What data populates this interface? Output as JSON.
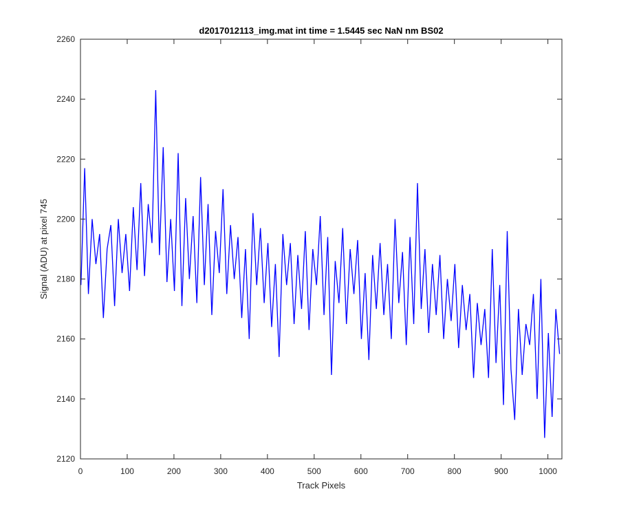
{
  "chart_data": {
    "type": "line",
    "title": "d2017012113_img.mat int time = 1.5445 sec  NaN nm BS02",
    "x_label": "Track Pixels",
    "y_label": "Signal (ADU) at pixel 745",
    "x": [
      1,
      9,
      17,
      25,
      33,
      41,
      49,
      57,
      65,
      73,
      81,
      89,
      97,
      105,
      113,
      121,
      129,
      137,
      145,
      153,
      161,
      169,
      177,
      185,
      193,
      201,
      209,
      217,
      225,
      233,
      241,
      249,
      257,
      265,
      273,
      281,
      289,
      297,
      305,
      313,
      321,
      329,
      337,
      345,
      353,
      361,
      369,
      377,
      385,
      393,
      401,
      409,
      417,
      425,
      433,
      441,
      449,
      457,
      465,
      473,
      481,
      489,
      497,
      505,
      513,
      521,
      529,
      537,
      545,
      553,
      561,
      569,
      577,
      585,
      593,
      601,
      609,
      617,
      625,
      633,
      641,
      649,
      657,
      665,
      673,
      681,
      689,
      697,
      705,
      713,
      721,
      729,
      737,
      745,
      753,
      761,
      769,
      777,
      785,
      793,
      801,
      809,
      817,
      825,
      833,
      841,
      849,
      857,
      865,
      873,
      881,
      889,
      897,
      905,
      913,
      921,
      929,
      937,
      945,
      953,
      961,
      969,
      977,
      985,
      993,
      1001,
      1009,
      1017,
      1025
    ],
    "values": [
      2178,
      2217,
      2175,
      2200,
      2185,
      2195,
      2167,
      2190,
      2198,
      2171,
      2200,
      2182,
      2195,
      2176,
      2204,
      2183,
      2212,
      2181,
      2205,
      2192,
      2243,
      2188,
      2224,
      2179,
      2200,
      2176,
      2222,
      2171,
      2207,
      2180,
      2201,
      2172,
      2214,
      2178,
      2205,
      2168,
      2196,
      2182,
      2210,
      2175,
      2198,
      2180,
      2194,
      2167,
      2190,
      2160,
      2202,
      2178,
      2197,
      2172,
      2192,
      2164,
      2185,
      2154,
      2195,
      2178,
      2192,
      2165,
      2188,
      2170,
      2196,
      2163,
      2190,
      2178,
      2201,
      2168,
      2194,
      2148,
      2186,
      2172,
      2197,
      2165,
      2190,
      2175,
      2193,
      2160,
      2182,
      2153,
      2188,
      2170,
      2192,
      2168,
      2185,
      2160,
      2200,
      2172,
      2189,
      2158,
      2194,
      2165,
      2212,
      2170,
      2190,
      2162,
      2185,
      2168,
      2188,
      2160,
      2180,
      2166,
      2185,
      2157,
      2178,
      2163,
      2175,
      2147,
      2172,
      2158,
      2170,
      2147,
      2190,
      2152,
      2178,
      2138,
      2196,
      2150,
      2133,
      2170,
      2148,
      2165,
      2158,
      2175,
      2140,
      2180,
      2127,
      2162,
      2134,
      2170,
      2155
    ],
    "color": "#0000ff",
    "xlim": [
      0,
      1030
    ],
    "xticks": [
      0,
      100,
      200,
      300,
      400,
      500,
      600,
      700,
      800,
      900,
      1000
    ],
    "ylim": [
      2120,
      2260
    ],
    "yticks": [
      2120,
      2140,
      2160,
      2180,
      2200,
      2220,
      2240,
      2260
    ]
  }
}
